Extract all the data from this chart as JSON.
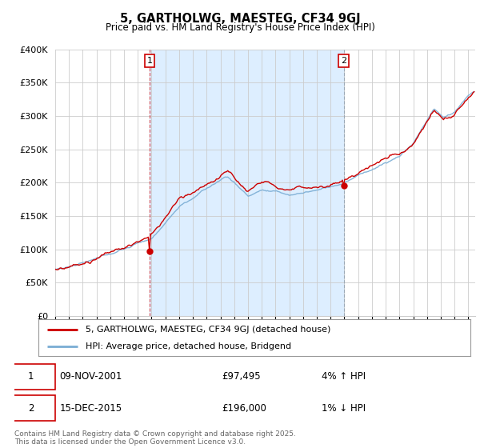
{
  "title": "5, GARTHOLWG, MAESTEG, CF34 9GJ",
  "subtitle": "Price paid vs. HM Land Registry's House Price Index (HPI)",
  "ylabel_ticks": [
    "£0",
    "£50K",
    "£100K",
    "£150K",
    "£200K",
    "£250K",
    "£300K",
    "£350K",
    "£400K"
  ],
  "ylim": [
    0,
    400000
  ],
  "xlim_start": 1995.0,
  "xlim_end": 2025.5,
  "legend_label_red": "5, GARTHOLWG, MAESTEG, CF34 9GJ (detached house)",
  "legend_label_blue": "HPI: Average price, detached house, Bridgend",
  "marker1_x": 2001.86,
  "marker1_y": 97495,
  "marker1_label": "1",
  "marker1_date": "09-NOV-2001",
  "marker1_price": "£97,495",
  "marker1_hpi": "4% ↑ HPI",
  "marker2_x": 2015.96,
  "marker2_y": 196000,
  "marker2_label": "2",
  "marker2_date": "15-DEC-2015",
  "marker2_price": "£196,000",
  "marker2_hpi": "1% ↓ HPI",
  "vline1_x": 2001.86,
  "vline2_x": 2015.96,
  "line_color_red": "#cc0000",
  "line_color_blue": "#7aadd4",
  "vline1_color": "#cc0000",
  "vline2_color": "#8899aa",
  "shade_color": "#ddeeff",
  "background_color": "#ffffff",
  "grid_color": "#cccccc",
  "footnote": "Contains HM Land Registry data © Crown copyright and database right 2025.\nThis data is licensed under the Open Government Licence v3.0.",
  "sale1_price": 97495,
  "sale1_year": 2001.86,
  "sale2_price": 196000,
  "sale2_year": 2015.96
}
